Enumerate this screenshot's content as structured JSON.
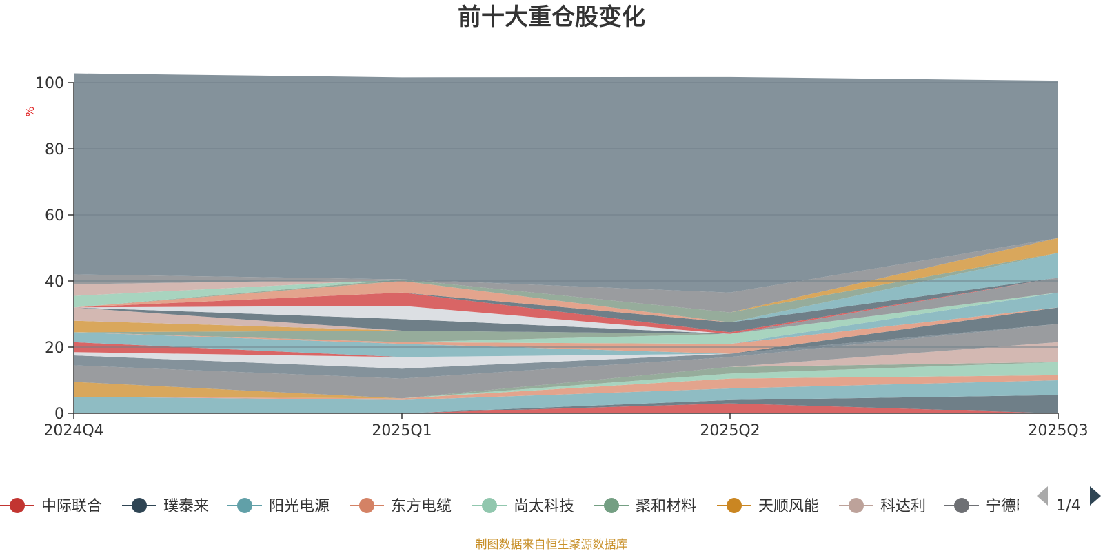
{
  "colors": {
    "title": "#333333",
    "axis": "#333333",
    "gridline": "#6f7f88",
    "unit": "#e02020",
    "source": "#c8902a",
    "plot_background": "#84929b"
  },
  "chart_data": {
    "type": "area",
    "stacked": true,
    "title": "前十大重仓股变化",
    "ylabel": "%",
    "ylim": [
      0,
      100
    ],
    "yticks": [
      0,
      20,
      40,
      60,
      80,
      100
    ],
    "grid": true,
    "categories": [
      "2024Q4",
      "2025Q1",
      "2025Q2",
      "2025Q3"
    ],
    "series": [
      {
        "name": "",
        "color": "#d96565",
        "values": [
          0,
          0,
          3,
          0
        ]
      },
      {
        "name": "",
        "color": "#6f7f88",
        "values": [
          0,
          0,
          1,
          5.5
        ]
      },
      {
        "name": "",
        "color": "#8fbcc3",
        "values": [
          5,
          4,
          3.5,
          4.5
        ]
      },
      {
        "name": "",
        "color": "#e3a48d",
        "values": [
          0,
          0.5,
          3,
          1.5
        ]
      },
      {
        "name": "",
        "color": "#a8d4bf",
        "values": [
          0,
          0,
          1.5,
          4
        ]
      },
      {
        "name": "",
        "color": "#96ac9b",
        "values": [
          0,
          0,
          2,
          0
        ]
      },
      {
        "name": "",
        "color": "#d9a75c",
        "values": [
          4.5,
          0,
          0,
          0
        ]
      },
      {
        "name": "",
        "color": "#d3b8b2",
        "values": [
          0,
          0,
          0,
          6
        ]
      },
      {
        "name": "",
        "color": "#9a9c9f",
        "values": [
          5,
          6,
          3,
          5.5
        ]
      },
      {
        "name": "",
        "color": "#84929b",
        "values": [
          3,
          3,
          1,
          0
        ]
      },
      {
        "name": "",
        "color": "#dcdfe3",
        "values": [
          1,
          3.5,
          0,
          0
        ]
      },
      {
        "name": "",
        "color": "#d96565",
        "values": [
          3,
          0,
          0,
          0
        ]
      },
      {
        "name": "",
        "color": "#8fbcc3",
        "values": [
          3,
          4,
          0,
          0
        ]
      },
      {
        "name": "",
        "color": "#6f7f88",
        "values": [
          0,
          0,
          0,
          5
        ]
      },
      {
        "name": "",
        "color": "#e3a48d",
        "values": [
          0,
          0.5,
          3,
          0
        ]
      },
      {
        "name": "",
        "color": "#8fbcc3",
        "values": [
          0,
          0,
          0,
          4.5
        ]
      },
      {
        "name": "",
        "color": "#a8d4bf",
        "values": [
          0,
          0,
          3,
          0
        ]
      },
      {
        "name": "",
        "color": "#96ac9b",
        "values": [
          0,
          3.5,
          0,
          0
        ]
      },
      {
        "name": "",
        "color": "#d9a75c",
        "values": [
          3.5,
          0,
          0,
          0
        ]
      },
      {
        "name": "",
        "color": "#d3b8b2",
        "values": [
          4,
          0,
          0,
          0
        ]
      },
      {
        "name": "",
        "color": "#9a9c9f",
        "values": [
          0,
          0,
          0,
          4.5
        ]
      },
      {
        "name": "",
        "color": "#6f7f88",
        "values": [
          0,
          3.5,
          0,
          0
        ]
      },
      {
        "name": "",
        "color": "#dcdfe3",
        "values": [
          0,
          4,
          0,
          0
        ]
      },
      {
        "name": "",
        "color": "#d96565",
        "values": [
          0,
          4,
          0.5,
          0
        ]
      },
      {
        "name": "",
        "color": "#6f7f88",
        "values": [
          0,
          0,
          3,
          0
        ]
      },
      {
        "name": "",
        "color": "#8fbcc3",
        "values": [
          0,
          0,
          0,
          7.5
        ]
      },
      {
        "name": "",
        "color": "#e3a48d",
        "values": [
          0,
          3.5,
          0,
          0
        ]
      },
      {
        "name": "",
        "color": "#96ac9b",
        "values": [
          0,
          0.5,
          3,
          0
        ]
      },
      {
        "name": "",
        "color": "#a8d4bf",
        "values": [
          3.5,
          0,
          0,
          0
        ]
      },
      {
        "name": "",
        "color": "#d9a75c",
        "values": [
          0,
          0,
          0,
          4.5
        ]
      },
      {
        "name": "",
        "color": "#d3b8b2",
        "values": [
          3.5,
          0,
          0,
          0
        ]
      },
      {
        "name": "",
        "color": "#9a9c9f",
        "values": [
          3,
          0,
          6,
          0
        ]
      },
      {
        "name": "",
        "color": "#84929b",
        "values": [
          60.8,
          61.1,
          65.2,
          47.6
        ]
      }
    ]
  },
  "legend": {
    "items": [
      {
        "label": "中际联合",
        "color": "#c23531"
      },
      {
        "label": "璞泰来",
        "color": "#2f4554"
      },
      {
        "label": "阳光电源",
        "color": "#61a0a8"
      },
      {
        "label": "东方电缆",
        "color": "#d48265"
      },
      {
        "label": "尚太科技",
        "color": "#91c7ae"
      },
      {
        "label": "聚和材料",
        "color": "#749f83"
      },
      {
        "label": "天顺风能",
        "color": "#ca8622"
      },
      {
        "label": "科达利",
        "color": "#bda29a"
      },
      {
        "label": "宁德时代",
        "color": "#6e7074"
      }
    ],
    "page": "1/4"
  },
  "source_note": "制图数据来自恒生聚源数据库"
}
